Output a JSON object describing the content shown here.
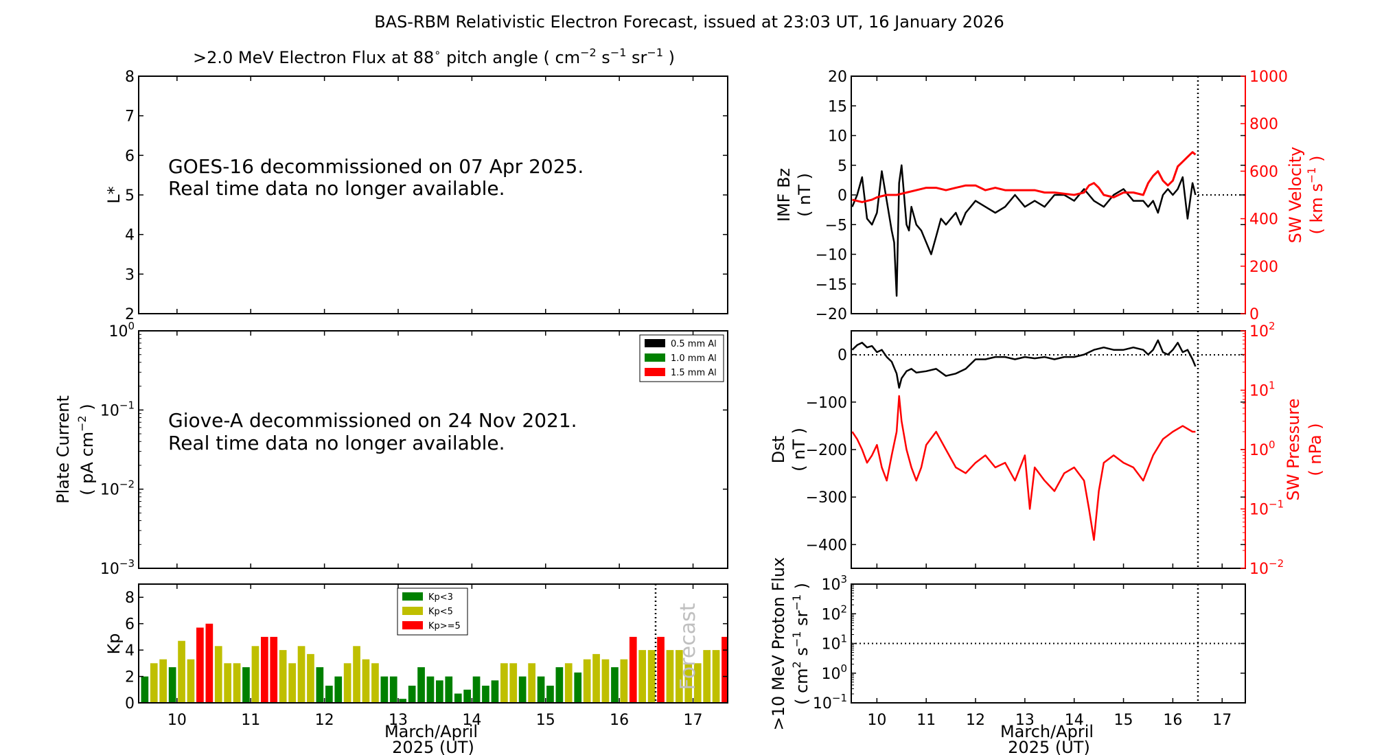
{
  "title": "BAS-RBM Relativistic Electron Forecast, issued at 23:03 UT, 16 January 2026",
  "colors": {
    "black": "#000000",
    "red": "#ff0000",
    "green": "#008000",
    "olive": "#bfbf00",
    "forecast_text": "#bfbfbf"
  },
  "panels": {
    "flux": {
      "title_prefix": ">2.0 MeV Electron Flux at 88",
      "title_deg": "∘",
      "title_mid": " pitch angle ( cm",
      "title_sup1": "−2",
      "title_s": " s",
      "title_sup2": "−1",
      "title_sr": " sr",
      "title_sup3": "−1",
      "title_end": " )",
      "ylabel": "L*",
      "message_line1": "GOES-16 decommissioned on 07 Apr 2025.",
      "message_line2": "Real time data no longer available."
    },
    "plate": {
      "ylabel_line1": "Plate Current",
      "ylabel_line2_a": "( pA cm",
      "ylabel_line2_sup": "−2",
      "ylabel_line2_b": " )",
      "message_line1": "Giove-A decommissioned on 24 Nov 2021.",
      "message_line2": "Real time data no longer available.",
      "legend": [
        "0.5 mm Al",
        "1.0 mm Al",
        "1.5 mm Al"
      ]
    },
    "kp": {
      "ylabel": "Kp",
      "xlabel_line1": "March/April",
      "xlabel_line2": "2025 (UT)",
      "legend": [
        "Kp<3",
        "Kp<5",
        "Kp>=5"
      ],
      "forecast_label": "Forecast"
    },
    "imf": {
      "ylabel_line1": "IMF Bz",
      "ylabel_line2": "( nT )",
      "ylabel2_line1": "SW Velocity",
      "ylabel2_line2_a": "( km s",
      "ylabel2_line2_sup": "−1",
      "ylabel2_line2_b": " )"
    },
    "dst": {
      "ylabel_line1": "Dst",
      "ylabel_line2": "( nT )",
      "ylabel2_line1": "SW Pressure",
      "ylabel2_line2": "( nPa )"
    },
    "proton": {
      "ylabel_line1": ">10 MeV Proton Flux",
      "ylabel_line2_a": "( cm",
      "ylabel_line2_sup1": "2",
      "ylabel_line2_b": " s",
      "ylabel_line2_sup2": "−1",
      "ylabel_line2_c": " sr",
      "ylabel_line2_sup3": "−1",
      "ylabel_line2_d": " )",
      "xlabel_line1": "March/April",
      "xlabel_line2": "2025 (UT)"
    }
  },
  "chart_data": [
    {
      "id": "flux",
      "type": "heatmap",
      "title": ">2.0 MeV Electron Flux at 88∘ pitch angle ( cm−2 s−1 sr−1 )",
      "ylabel": "L*",
      "ylim": [
        2,
        8
      ],
      "yticks": [
        2,
        3,
        4,
        5,
        6,
        7,
        8
      ],
      "xlim": [
        9.48,
        17.47
      ],
      "values": []
    },
    {
      "id": "plate",
      "type": "line",
      "ylabel": "Plate Current ( pA cm−2 )",
      "yscale": "log",
      "ylim": [
        0.001,
        1
      ],
      "yticks": [
        "10^-3",
        "10^-2",
        "10^-1",
        "10^0"
      ],
      "legend_position": "top-right",
      "series": [
        {
          "name": "0.5 mm Al",
          "color": "#000000",
          "values": []
        },
        {
          "name": "1.0 mm Al",
          "color": "#008000",
          "values": []
        },
        {
          "name": "1.5 mm Al",
          "color": "#ff0000",
          "values": []
        }
      ]
    },
    {
      "id": "kp",
      "type": "bar",
      "ylabel": "Kp",
      "xlabel": "March/April 2025 (UT)",
      "ylim": [
        0,
        9
      ],
      "yticks": [
        0,
        2,
        4,
        6,
        8
      ],
      "xlim": [
        9.48,
        17.47
      ],
      "xticks": [
        10,
        11,
        12,
        13,
        14,
        15,
        16,
        17
      ],
      "bar_width_days": 0.1,
      "forecast_start": 16.5,
      "legend_position": "top-center",
      "legend": [
        {
          "name": "Kp<3",
          "color": "#008000"
        },
        {
          "name": "Kp<5",
          "color": "#bfbf00"
        },
        {
          "name": "Kp>=5",
          "color": "#ff0000"
        }
      ],
      "values": [
        2.0,
        3.0,
        3.3,
        2.7,
        4.7,
        3.3,
        5.7,
        6.0,
        4.3,
        3.0,
        3.0,
        2.7,
        4.3,
        5.0,
        5.0,
        4.0,
        3.0,
        4.3,
        3.7,
        2.7,
        1.3,
        2.0,
        3.0,
        4.3,
        3.3,
        3.0,
        2.0,
        2.0,
        0.3,
        1.3,
        2.7,
        2.0,
        1.7,
        2.0,
        0.7,
        1.0,
        2.0,
        1.3,
        1.7,
        3.0,
        3.0,
        2.0,
        3.0,
        2.0,
        1.3,
        2.7,
        3.0,
        2.3,
        3.3,
        3.7,
        3.3,
        2.7,
        3.3,
        5.0,
        4.0,
        4.0,
        5.0,
        4.0,
        4.0,
        3.0,
        3.0,
        4.0,
        4.0,
        5.0
      ]
    },
    {
      "id": "imf",
      "type": "line",
      "ylabel": "IMF Bz ( nT )",
      "ylabel_right": "SW Velocity ( km s−1 )",
      "ylim": [
        -20,
        20
      ],
      "ylim_right": [
        0,
        1000
      ],
      "yticks": [
        -20,
        -15,
        -10,
        -5,
        0,
        5,
        10,
        15,
        20
      ],
      "yticks_right": [
        0,
        200,
        400,
        600,
        800,
        1000
      ],
      "xlim": [
        9.48,
        17.47
      ],
      "now": 16.46,
      "series": [
        {
          "name": "IMF Bz",
          "color": "#000000",
          "axis": "left",
          "x": [
            9.5,
            9.6,
            9.7,
            9.8,
            9.9,
            10.0,
            10.1,
            10.2,
            10.3,
            10.35,
            10.4,
            10.45,
            10.5,
            10.55,
            10.6,
            10.65,
            10.7,
            10.8,
            10.9,
            11.0,
            11.1,
            11.2,
            11.3,
            11.4,
            11.5,
            11.6,
            11.7,
            11.8,
            11.9,
            12.0,
            12.2,
            12.4,
            12.6,
            12.8,
            13.0,
            13.2,
            13.4,
            13.6,
            13.8,
            14.0,
            14.2,
            14.4,
            14.6,
            14.8,
            15.0,
            15.2,
            15.4,
            15.5,
            15.6,
            15.7,
            15.8,
            15.9,
            16.0,
            16.1,
            16.2,
            16.3,
            16.4,
            16.46
          ],
          "y": [
            -2,
            0,
            3,
            -4,
            -5,
            -3,
            4,
            -1,
            -6,
            -8,
            -17,
            2,
            5,
            0,
            -5,
            -6,
            -2,
            -5,
            -6,
            -8,
            -10,
            -7,
            -4,
            -5,
            -4,
            -3,
            -5,
            -3,
            -2,
            -1,
            -2,
            -3,
            -2,
            0,
            -2,
            -1,
            -2,
            0,
            0,
            -1,
            1,
            -1,
            -2,
            0,
            1,
            -1,
            -1,
            -2,
            -1,
            -3,
            0,
            1,
            0,
            1,
            3,
            -4,
            2,
            0
          ]
        },
        {
          "name": "SW Velocity",
          "color": "#ff0000",
          "axis": "right",
          "x": [
            9.5,
            9.7,
            9.9,
            10.0,
            10.2,
            10.4,
            10.6,
            10.8,
            11.0,
            11.2,
            11.4,
            11.6,
            11.8,
            12.0,
            12.2,
            12.4,
            12.6,
            12.8,
            13.0,
            13.2,
            13.4,
            13.6,
            13.8,
            14.0,
            14.2,
            14.3,
            14.4,
            14.5,
            14.6,
            14.8,
            15.0,
            15.2,
            15.4,
            15.5,
            15.6,
            15.7,
            15.8,
            15.9,
            16.0,
            16.1,
            16.2,
            16.3,
            16.4,
            16.46
          ],
          "y": [
            480,
            470,
            480,
            490,
            500,
            500,
            510,
            520,
            530,
            530,
            520,
            530,
            540,
            540,
            520,
            530,
            520,
            520,
            520,
            520,
            510,
            510,
            505,
            500,
            510,
            540,
            550,
            530,
            500,
            490,
            510,
            510,
            500,
            550,
            580,
            600,
            560,
            540,
            560,
            620,
            640,
            660,
            680,
            670
          ]
        }
      ]
    },
    {
      "id": "dst",
      "type": "line",
      "ylabel": "Dst ( nT )",
      "ylabel_right": "SW Pressure ( nPa )",
      "ylim": [
        -450,
        50
      ],
      "yticks": [
        -400,
        -300,
        -200,
        -100,
        0
      ],
      "ylim_right": [
        0.01,
        100
      ],
      "yscale_right": "log",
      "yticks_right": [
        "10^-2",
        "10^-1",
        "10^0",
        "10^1",
        "10^2"
      ],
      "xlim": [
        9.48,
        17.47
      ],
      "now": 16.46,
      "series": [
        {
          "name": "Dst",
          "color": "#000000",
          "axis": "left",
          "x": [
            9.5,
            9.6,
            9.7,
            9.8,
            9.9,
            10.0,
            10.1,
            10.2,
            10.3,
            10.4,
            10.45,
            10.5,
            10.6,
            10.7,
            10.8,
            11.0,
            11.2,
            11.4,
            11.6,
            11.8,
            12.0,
            12.2,
            12.4,
            12.6,
            12.8,
            13.0,
            13.2,
            13.4,
            13.6,
            13.8,
            14.0,
            14.2,
            14.4,
            14.6,
            14.8,
            15.0,
            15.2,
            15.4,
            15.5,
            15.6,
            15.7,
            15.8,
            15.9,
            16.0,
            16.1,
            16.2,
            16.3,
            16.4,
            16.46
          ],
          "y": [
            10,
            20,
            25,
            15,
            18,
            5,
            10,
            -5,
            -15,
            -40,
            -70,
            -50,
            -35,
            -30,
            -38,
            -35,
            -30,
            -45,
            -40,
            -30,
            -10,
            -10,
            -5,
            -5,
            -10,
            -5,
            -8,
            -5,
            -10,
            -5,
            -5,
            0,
            10,
            15,
            10,
            10,
            15,
            10,
            0,
            10,
            30,
            5,
            0,
            10,
            25,
            5,
            10,
            -10,
            -25
          ]
        },
        {
          "name": "SW Pressure",
          "color": "#ff0000",
          "axis": "right",
          "x": [
            9.5,
            9.6,
            9.7,
            9.8,
            9.9,
            10.0,
            10.1,
            10.2,
            10.3,
            10.4,
            10.45,
            10.5,
            10.6,
            10.7,
            10.8,
            10.9,
            11.0,
            11.2,
            11.4,
            11.6,
            11.8,
            12.0,
            12.2,
            12.4,
            12.6,
            12.8,
            13.0,
            13.1,
            13.2,
            13.4,
            13.6,
            13.8,
            14.0,
            14.2,
            14.3,
            14.4,
            14.5,
            14.6,
            14.8,
            15.0,
            15.2,
            15.4,
            15.6,
            15.8,
            16.0,
            16.2,
            16.4,
            16.46
          ],
          "y": [
            2,
            1.5,
            1,
            0.6,
            0.8,
            1.2,
            0.5,
            0.3,
            0.8,
            2,
            8,
            3,
            1,
            0.5,
            0.3,
            0.5,
            1.2,
            2,
            1,
            0.5,
            0.4,
            0.6,
            0.8,
            0.5,
            0.6,
            0.3,
            0.8,
            0.1,
            0.5,
            0.3,
            0.2,
            0.4,
            0.5,
            0.3,
            0.1,
            0.03,
            0.2,
            0.6,
            0.8,
            0.6,
            0.5,
            0.3,
            0.8,
            1.5,
            2,
            2.5,
            2,
            2
          ]
        }
      ]
    },
    {
      "id": "proton",
      "type": "line",
      "ylabel": ">10 MeV Proton Flux ( cm2 s−1 sr−1 )",
      "xlabel": "March/April 2025 (UT)",
      "yscale": "log",
      "ylim": [
        0.1,
        1000
      ],
      "yticks": [
        "10^-1",
        "10^0",
        "10^1",
        "10^2",
        "10^3"
      ],
      "xlim": [
        9.48,
        17.47
      ],
      "xticks": [
        10,
        11,
        12,
        13,
        14,
        15,
        16,
        17
      ],
      "threshold": 10,
      "now": 16.46,
      "series": []
    }
  ]
}
